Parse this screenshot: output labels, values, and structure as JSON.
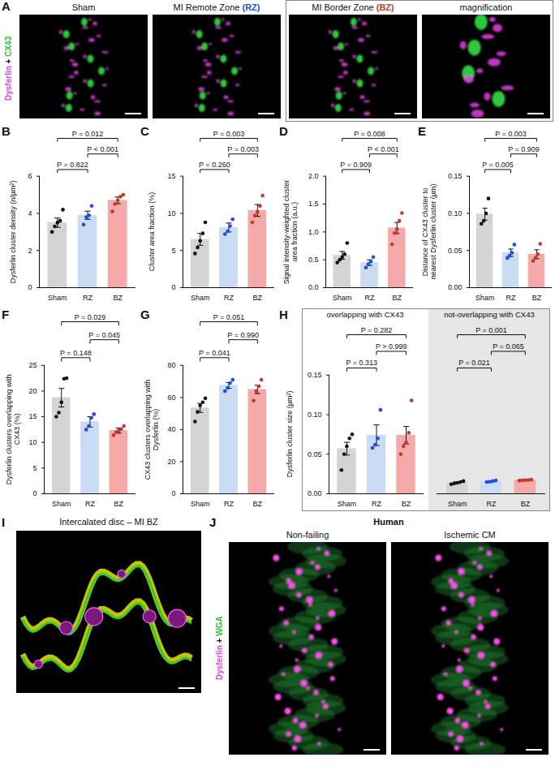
{
  "chart_data": [
    {
      "panel": "B",
      "type": "bar",
      "y_label": "Dysferlin cluster density (n/µm²)",
      "categories": [
        "Sham",
        "RZ",
        "BZ"
      ],
      "values": [
        3.5,
        3.9,
        4.7
      ],
      "errors": [
        0.25,
        0.22,
        0.18
      ],
      "points": [
        [
          3.0,
          3.3,
          3.5,
          3.6,
          4.2
        ],
        [
          3.4,
          3.8,
          3.9,
          4.4
        ],
        [
          4.1,
          4.5,
          4.7,
          4.9,
          5.0
        ]
      ],
      "colors": [
        "#d4d4d4",
        "#c9dcf4",
        "#f5a9a9"
      ],
      "ylim": [
        0,
        6
      ],
      "yticks": [
        0,
        2,
        4,
        6
      ],
      "comparisons": [
        {
          "from": "Sham",
          "to": "RZ",
          "label": "P = 0.822"
        },
        {
          "from": "RZ",
          "to": "BZ",
          "label": "P < 0.001"
        },
        {
          "from": "Sham",
          "to": "BZ",
          "label": "P = 0.012"
        }
      ]
    },
    {
      "panel": "C",
      "type": "bar",
      "y_label": "Cluster area fraction (%)",
      "categories": [
        "Sham",
        "RZ",
        "BZ"
      ],
      "values": [
        6.5,
        8.1,
        10.4
      ],
      "errors": [
        0.8,
        0.6,
        0.8
      ],
      "points": [
        [
          4.6,
          5.4,
          6.3,
          7.3,
          8.8
        ],
        [
          7.2,
          7.6,
          8.3,
          9.2
        ],
        [
          8.8,
          9.7,
          10.2,
          11.0,
          12.4
        ]
      ],
      "colors": [
        "#d4d4d4",
        "#c9dcf4",
        "#f5a9a9"
      ],
      "ylim": [
        0,
        15
      ],
      "yticks": [
        0,
        5,
        10,
        15
      ],
      "comparisons": [
        {
          "from": "Sham",
          "to": "RZ",
          "label": "P = 0.260"
        },
        {
          "from": "RZ",
          "to": "BZ",
          "label": "P = 0.003"
        },
        {
          "from": "Sham",
          "to": "BZ",
          "label": "P = 0.003"
        }
      ]
    },
    {
      "panel": "D",
      "type": "bar",
      "y_label": "Signal intensity-weighted cluster area fraction (a.u.)",
      "categories": [
        "Sham",
        "RZ",
        "BZ"
      ],
      "values": [
        0.58,
        0.45,
        1.07
      ],
      "errors": [
        0.07,
        0.05,
        0.1
      ],
      "points": [
        [
          0.45,
          0.5,
          0.55,
          0.6,
          0.8
        ],
        [
          0.36,
          0.42,
          0.47,
          0.55
        ],
        [
          0.78,
          0.98,
          1.05,
          1.2,
          1.34
        ]
      ],
      "colors": [
        "#d4d4d4",
        "#c9dcf4",
        "#f5a9a9"
      ],
      "ylim": [
        0,
        2
      ],
      "yticks": [
        {
          "value": 0,
          "label": "0.0"
        },
        0.5,
        {
          "value": 1,
          "label": "1.0"
        },
        1.5,
        {
          "value": 2,
          "label": "2.0"
        }
      ],
      "comparisons": [
        {
          "from": "Sham",
          "to": "RZ",
          "label": "P = 0.909"
        },
        {
          "from": "RZ",
          "to": "BZ",
          "label": "P < 0.001"
        },
        {
          "from": "Sham",
          "to": "BZ",
          "label": "P = 0.008"
        }
      ]
    },
    {
      "panel": "E",
      "type": "bar",
      "y_label": "Distance of CX43 cluster to nearest Dysferlin cluster (µm)",
      "categories": [
        "Sham",
        "RZ",
        "BZ"
      ],
      "values": [
        0.099,
        0.047,
        0.045
      ],
      "errors": [
        0.008,
        0.005,
        0.006
      ],
      "points": [
        [
          0.086,
          0.09,
          0.1,
          0.12
        ],
        [
          0.04,
          0.043,
          0.047,
          0.058
        ],
        [
          0.036,
          0.04,
          0.045,
          0.059
        ]
      ],
      "colors": [
        "#d4d4d4",
        "#c9dcf4",
        "#f5a9a9"
      ],
      "ylim": [
        0,
        0.15
      ],
      "yticks": [
        {
          "value": 0,
          "label": "0.00"
        },
        0.05,
        {
          "value": 0.1,
          "label": "0.10"
        },
        0.15
      ],
      "comparisons": [
        {
          "from": "Sham",
          "to": "RZ",
          "label": "P = 0.005"
        },
        {
          "from": "RZ",
          "to": "BZ",
          "label": "P = 0.909"
        },
        {
          "from": "Sham",
          "to": "BZ",
          "label": "P = 0.003"
        }
      ]
    },
    {
      "panel": "F",
      "type": "bar",
      "y_label": "Dysferlin clusters overlapping with CX43 (%)",
      "categories": [
        "Sham",
        "RZ",
        "BZ"
      ],
      "values": [
        18.7,
        14.0,
        12.3
      ],
      "errors": [
        1.8,
        1.0,
        0.5
      ],
      "points": [
        [
          15.0,
          15.8,
          17.8,
          22.4,
          22.5
        ],
        [
          12.5,
          13.2,
          14.8,
          15.5
        ],
        [
          11.4,
          12.0,
          12.3,
          12.6,
          13.2
        ]
      ],
      "colors": [
        "#d4d4d4",
        "#c9dcf4",
        "#f5a9a9"
      ],
      "ylim": [
        0,
        25
      ],
      "yticks": [
        0,
        5,
        10,
        15,
        20,
        25
      ],
      "comparisons": [
        {
          "from": "Sham",
          "to": "RZ",
          "label": "P = 0.148"
        },
        {
          "from": "RZ",
          "to": "BZ",
          "label": "P = 0.045"
        },
        {
          "from": "Sham",
          "to": "BZ",
          "label": "P = 0.029"
        }
      ]
    },
    {
      "panel": "G",
      "type": "bar",
      "y_label": "CX43 clusters overlapping with Dysferlin (%)",
      "categories": [
        "Sham",
        "RZ",
        "BZ"
      ],
      "values": [
        53.5,
        67.5,
        65.0
      ],
      "errors": [
        2.8,
        1.8,
        2.6
      ],
      "points": [
        [
          45,
          51,
          55,
          57,
          59.5
        ],
        [
          64,
          66,
          69,
          71
        ],
        [
          58,
          64,
          67,
          71
        ]
      ],
      "colors": [
        "#d4d4d4",
        "#c9dcf4",
        "#f5a9a9"
      ],
      "ylim": [
        0,
        80
      ],
      "yticks": [
        0,
        20,
        40,
        60,
        80
      ],
      "comparisons": [
        {
          "from": "Sham",
          "to": "RZ",
          "label": "P = 0.041"
        },
        {
          "from": "RZ",
          "to": "BZ",
          "label": "P = 0.990"
        },
        {
          "from": "Sham",
          "to": "BZ",
          "label": "P = 0.051"
        }
      ]
    },
    {
      "panel": "H",
      "type": "bar",
      "y_label": "Dysferlin cluster size (µm²)",
      "ylim": [
        0,
        0.15
      ],
      "yticks": [
        {
          "value": 0,
          "label": "0.00"
        },
        0.05,
        {
          "value": 0.1,
          "label": "0.10"
        },
        0.15
      ],
      "facets": [
        {
          "title": "overlapping with CX43",
          "categories": [
            "Sham",
            "RZ",
            "BZ"
          ],
          "values": [
            0.057,
            0.074,
            0.074
          ],
          "errors": [
            0.008,
            0.013,
            0.011
          ],
          "points": [
            [
              0.03,
              0.05,
              0.06,
              0.07,
              0.075
            ],
            [
              0.058,
              0.062,
              0.07,
              0.106
            ],
            [
              0.05,
              0.06,
              0.065,
              0.077,
              0.118
            ]
          ],
          "colors": [
            "#d4d4d4",
            "#c9dcf4",
            "#f5a9a9"
          ],
          "comparisons": [
            {
              "from": "Sham",
              "to": "RZ",
              "label": "P = 0.313"
            },
            {
              "from": "RZ",
              "to": "BZ",
              "label": "P > 0.999"
            },
            {
              "from": "Sham",
              "to": "BZ",
              "label": "P = 0.282"
            }
          ]
        },
        {
          "title": "not-overlapping with CX43",
          "categories": [
            "Sham",
            "RZ",
            "BZ"
          ],
          "values": [
            0.014,
            0.0157,
            0.0172
          ],
          "errors": [
            0.0008,
            0.0006,
            0.0004
          ],
          "points": [
            [
              0.012,
              0.0132,
              0.0138,
              0.0148,
              0.016
            ],
            [
              0.0148,
              0.0152,
              0.016,
              0.0168
            ],
            [
              0.0165,
              0.017,
              0.0172,
              0.0175,
              0.0178
            ]
          ],
          "colors": [
            "#d4d4d4",
            "#c9dcf4",
            "#f5a9a9"
          ],
          "comparisons": [
            {
              "from": "Sham",
              "to": "RZ",
              "label": "P = 0.021"
            },
            {
              "from": "RZ",
              "to": "BZ",
              "label": "P = 0.065"
            },
            {
              "from": "Sham",
              "to": "BZ",
              "label": "P = 0.001"
            }
          ]
        }
      ]
    }
  ],
  "image_panels": {
    "A": {
      "panel": "A",
      "stain": [
        {
          "text": "Dysferlin",
          "color": "#e040e0"
        },
        {
          "text": "+",
          "color": "#111111"
        },
        {
          "text": "CX43",
          "color": "#2fbf3a"
        }
      ],
      "images": [
        {
          "title": [
            {
              "text": "Sham"
            }
          ],
          "kind": "streak",
          "boxed": false
        },
        {
          "title": [
            {
              "text": "MI Remote Zone"
            },
            {
              "text": "(RZ)",
              "color": "#1f4fd6"
            }
          ],
          "kind": "streak",
          "boxed": false
        },
        {
          "title": [
            {
              "text": "MI Border Zone"
            },
            {
              "text": "(BZ)",
              "color": "#c0392b"
            }
          ],
          "kind": "streak",
          "boxed": true
        },
        {
          "title": [
            {
              "text": "magnification"
            }
          ],
          "kind": "zoom",
          "boxed": true
        }
      ]
    },
    "I": {
      "panel": "I",
      "title": "Intercalated disc – MI BZ",
      "kind": "disc"
    },
    "J": {
      "panel": "J",
      "title": "Human",
      "stain": [
        {
          "text": "Dysferlin",
          "color": "#e040e0"
        },
        {
          "text": "+",
          "color": "#111111"
        },
        {
          "text": "WGA",
          "color": "#2fbf3a"
        }
      ],
      "images": [
        {
          "title": "Non-failing",
          "kind": "wga"
        },
        {
          "title": "Ischemic CM",
          "kind": "wga"
        }
      ]
    }
  }
}
